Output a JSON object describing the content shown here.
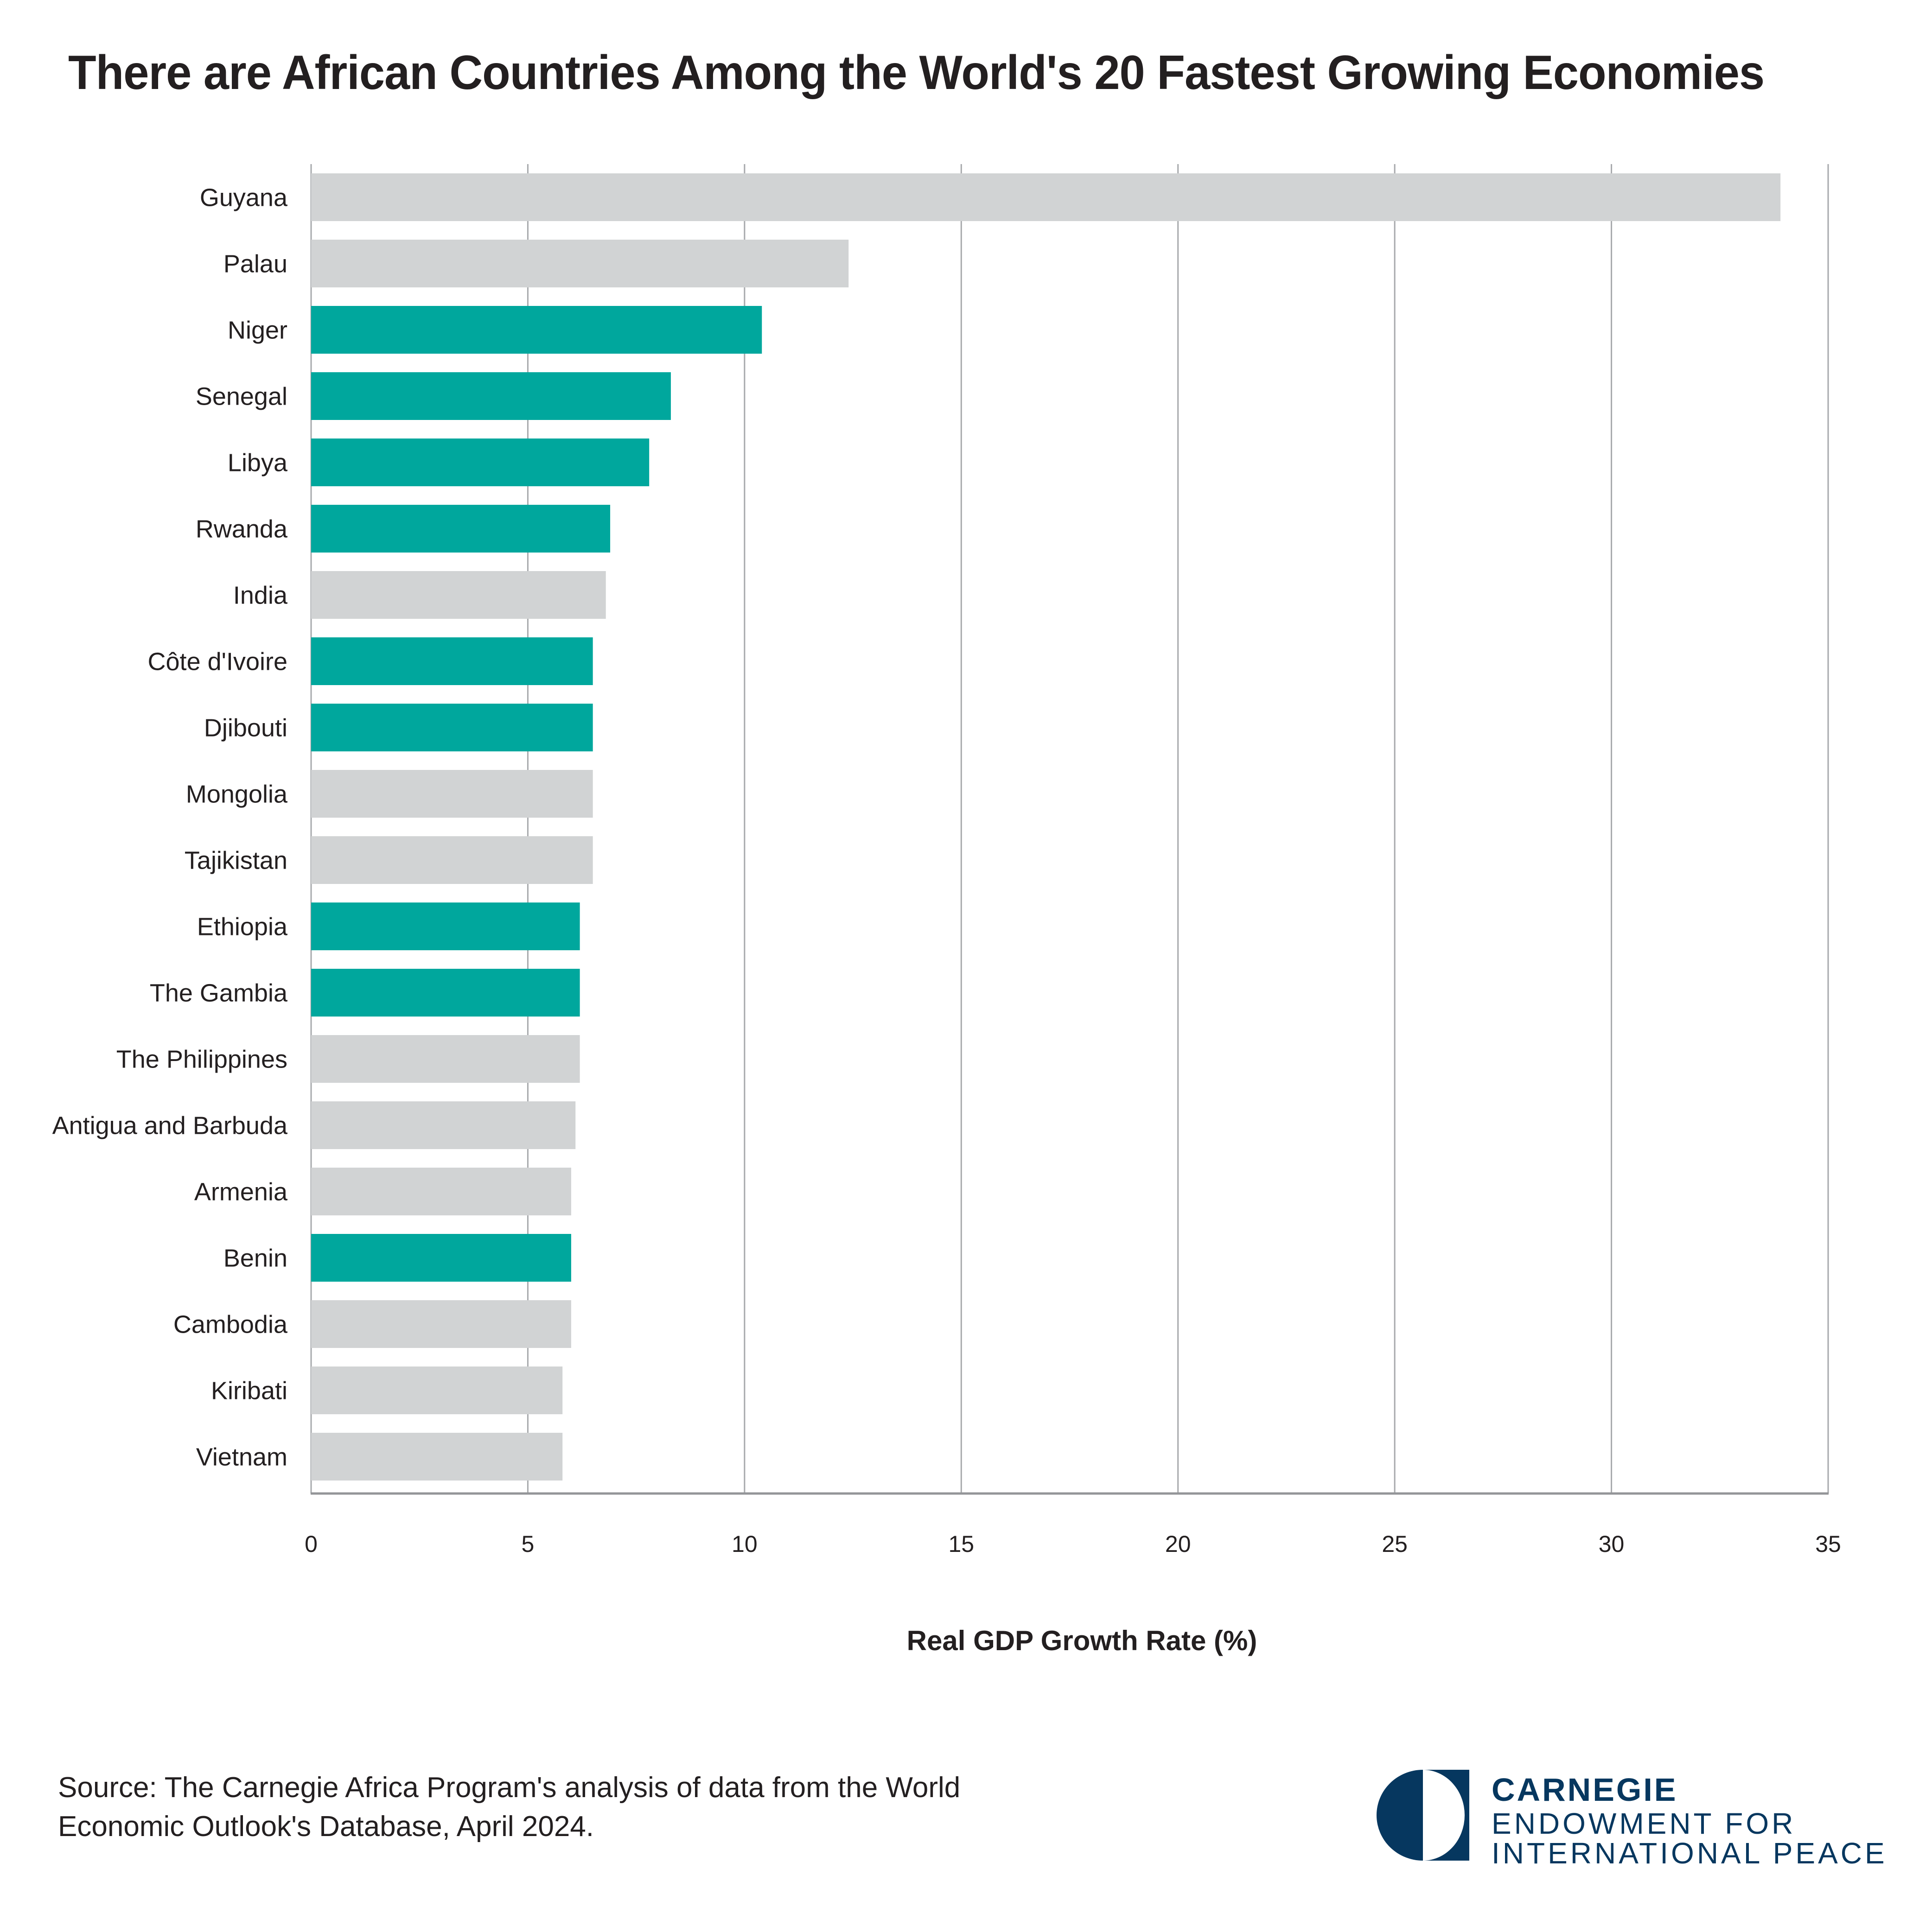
{
  "title": "There are African Countries Among the World's 20 Fastest Growing Economies",
  "colors": {
    "african": "#00a79d",
    "other": "#d1d3d4",
    "gridline": "#a7a9ac",
    "text": "#231f20",
    "brand": "#06375f"
  },
  "chart_data": {
    "type": "bar",
    "orientation": "horizontal",
    "title": "There are African Countries Among the World's 20 Fastest Growing Economies",
    "xlabel": "Real GDP Growth Rate (%)",
    "ylabel": "",
    "xlim": [
      0,
      35
    ],
    "xticks": [
      0,
      5,
      10,
      15,
      20,
      25,
      30,
      35
    ],
    "grid": true,
    "categories": [
      "Guyana",
      "Palau",
      "Niger",
      "Senegal",
      "Libya",
      "Rwanda",
      "India",
      "Côte d'Ivoire",
      "Djibouti",
      "Mongolia",
      "Tajikistan",
      "Ethiopia",
      "The Gambia",
      "The Philippines",
      "Antigua and Barbuda",
      "Armenia",
      "Benin",
      "Cambodia",
      "Kiribati",
      "Vietnam"
    ],
    "values": [
      33.9,
      12.4,
      10.4,
      8.3,
      7.8,
      6.9,
      6.8,
      6.5,
      6.5,
      6.5,
      6.5,
      6.2,
      6.2,
      6.2,
      6.1,
      6.0,
      6.0,
      6.0,
      5.8,
      5.8
    ],
    "is_african": [
      false,
      false,
      true,
      true,
      true,
      true,
      false,
      true,
      true,
      false,
      false,
      true,
      true,
      false,
      false,
      false,
      true,
      false,
      false,
      false
    ]
  },
  "source": {
    "line1": "Source: The Carnegie Africa Program's analysis of data from the World",
    "line2": "Economic Outlook's Database, April 2024."
  },
  "logo": {
    "line1": "CARNEGIE",
    "line2": "ENDOWMENT FOR",
    "line3": "INTERNATIONAL PEACE"
  }
}
